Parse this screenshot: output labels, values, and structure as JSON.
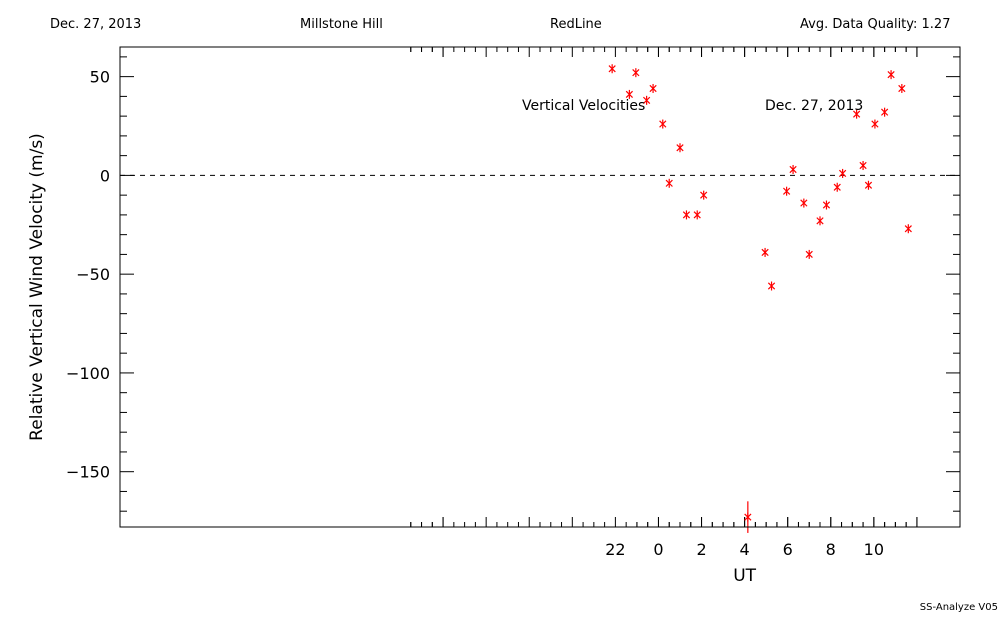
{
  "header": {
    "date": "Dec. 27, 2013",
    "station": "Millstone Hill",
    "line": "RedLine",
    "quality": "Avg. Data Quality: 1.27"
  },
  "footer": "SS-Analyze V05",
  "chart_data": {
    "type": "scatter",
    "title": "Vertical Velocities",
    "annotation": "Dec. 27, 2013",
    "xlabel": "UT",
    "ylabel": "Relative Vertical Wind Velocity (m/s)",
    "xlim": [
      -25.0,
      14.0
    ],
    "ylim": [
      -178,
      65
    ],
    "x_ticks": [
      22,
      0,
      2,
      4,
      6,
      8,
      10
    ],
    "y_ticks": [
      50,
      0,
      -50,
      -100,
      -150
    ],
    "zero_line": true,
    "marker_color": "#ff0000",
    "series": [
      {
        "points": [
          {
            "x": 21.85,
            "y": 54,
            "err": 0
          },
          {
            "x": 22.65,
            "y": 41,
            "err": 0
          },
          {
            "x": 22.95,
            "y": 52,
            "err": 0
          },
          {
            "x": 23.45,
            "y": 38,
            "err": 0
          },
          {
            "x": 23.75,
            "y": 44,
            "err": 0
          },
          {
            "x": 0.2,
            "y": 26,
            "err": 0
          },
          {
            "x": 0.5,
            "y": -4,
            "err": 0
          },
          {
            "x": 1.0,
            "y": 14,
            "err": 0
          },
          {
            "x": 1.3,
            "y": -20,
            "err": 0
          },
          {
            "x": 1.8,
            "y": -20,
            "err": 0
          },
          {
            "x": 2.1,
            "y": -10,
            "err": 0
          },
          {
            "x": 4.15,
            "y": -173,
            "err": 8
          },
          {
            "x": 4.95,
            "y": -39,
            "err": 0
          },
          {
            "x": 5.25,
            "y": -56,
            "err": 0
          },
          {
            "x": 5.95,
            "y": -8,
            "err": 0
          },
          {
            "x": 6.25,
            "y": 3,
            "err": 0
          },
          {
            "x": 6.75,
            "y": -14,
            "err": 0
          },
          {
            "x": 7.0,
            "y": -40,
            "err": 0
          },
          {
            "x": 7.5,
            "y": -23,
            "err": 0
          },
          {
            "x": 7.8,
            "y": -15,
            "err": 0
          },
          {
            "x": 8.3,
            "y": -6,
            "err": 0
          },
          {
            "x": 8.55,
            "y": 1,
            "err": 0
          },
          {
            "x": 9.2,
            "y": 31,
            "err": 0
          },
          {
            "x": 9.5,
            "y": 5,
            "err": 0
          },
          {
            "x": 9.75,
            "y": -5,
            "err": 0
          },
          {
            "x": 10.05,
            "y": 26,
            "err": 0
          },
          {
            "x": 10.5,
            "y": 32,
            "err": 0
          },
          {
            "x": 10.8,
            "y": 51,
            "err": 0
          },
          {
            "x": 11.3,
            "y": 44,
            "err": 0
          },
          {
            "x": 11.6,
            "y": -27,
            "err": 0
          }
        ]
      }
    ]
  }
}
